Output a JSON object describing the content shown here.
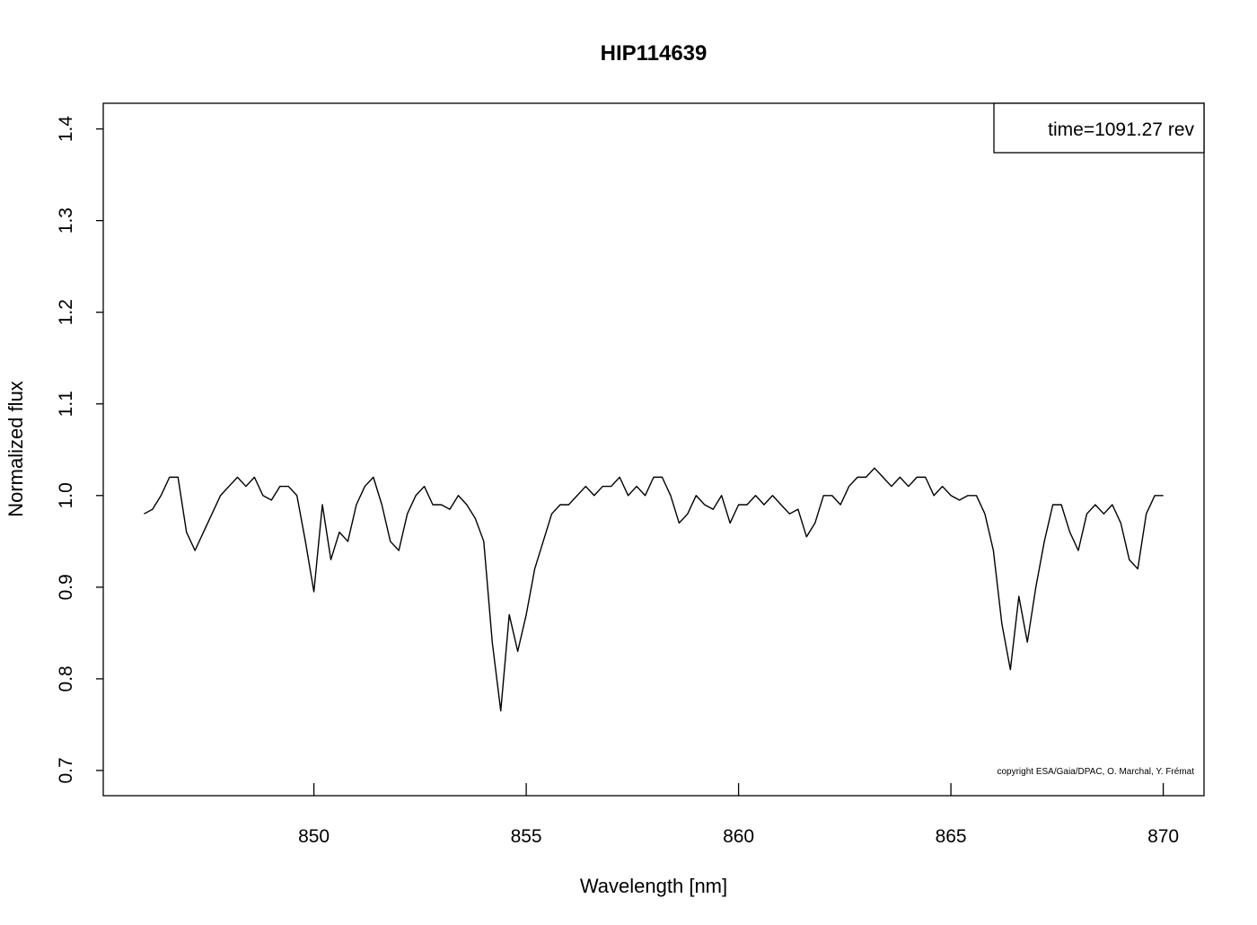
{
  "chart_data": {
    "type": "line",
    "title": "HIP114639",
    "x_label": "Wavelength [nm]",
    "y_label": "Normalized flux",
    "annotations": [
      "time=1091.27 rev",
      "copyright ESA/Gaia/DPAC, O. Marchal, Y. Frémat"
    ],
    "color": "#000000",
    "x": [
      846,
      846.2,
      846.4,
      846.6,
      846.8,
      847,
      847.2,
      847.4,
      847.6,
      847.8,
      848,
      848.2,
      848.4,
      848.6,
      848.8,
      849,
      849.2,
      849.4,
      849.6,
      849.8,
      850,
      850.2,
      850.4,
      850.6,
      850.8,
      851,
      851.2,
      851.4,
      851.6,
      851.8,
      852,
      852.2,
      852.4,
      852.6,
      852.8,
      853,
      853.2,
      853.4,
      853.6,
      853.8,
      854,
      854.2,
      854.4,
      854.6,
      854.8,
      855,
      855.2,
      855.4,
      855.6,
      855.8,
      856,
      856.2,
      856.4,
      856.6,
      856.8,
      857,
      857.2,
      857.4,
      857.6,
      857.8,
      858,
      858.2,
      858.4,
      858.6,
      858.8,
      859,
      859.2,
      859.4,
      859.6,
      859.8,
      860,
      860.2,
      860.4,
      860.6,
      860.8,
      861,
      861.2,
      861.4,
      861.6,
      861.8,
      862,
      862.2,
      862.4,
      862.6,
      862.8,
      863,
      863.2,
      863.4,
      863.6,
      863.8,
      864,
      864.2,
      864.4,
      864.6,
      864.8,
      865,
      865.2,
      865.4,
      865.6,
      865.8,
      866,
      866.2,
      866.4,
      866.6,
      866.8,
      867,
      867.2,
      867.4,
      867.6,
      867.8,
      868,
      868.2,
      868.4,
      868.6,
      868.8,
      869,
      869.2,
      869.4,
      869.6,
      869.8,
      870
    ],
    "values": [
      0.98,
      0.985,
      1.0,
      1.02,
      1.02,
      0.96,
      0.94,
      0.96,
      0.98,
      1.0,
      1.01,
      1.02,
      1.01,
      1.02,
      1.0,
      0.995,
      1.01,
      1.01,
      1.0,
      0.95,
      0.895,
      0.99,
      0.93,
      0.96,
      0.95,
      0.99,
      1.01,
      1.02,
      0.99,
      0.95,
      0.94,
      0.98,
      1.0,
      1.01,
      0.99,
      0.99,
      0.985,
      1.0,
      0.99,
      0.975,
      0.95,
      0.84,
      0.765,
      0.87,
      0.83,
      0.87,
      0.92,
      0.95,
      0.98,
      0.99,
      0.99,
      1.0,
      1.01,
      1.0,
      1.01,
      1.01,
      1.02,
      1.0,
      1.01,
      1.0,
      1.02,
      1.02,
      1.0,
      0.97,
      0.98,
      1.0,
      0.99,
      0.985,
      1.0,
      0.97,
      0.99,
      0.99,
      1.0,
      0.99,
      1.0,
      0.99,
      0.98,
      0.985,
      0.955,
      0.97,
      1.0,
      1.0,
      0.99,
      1.01,
      1.02,
      1.02,
      1.03,
      1.02,
      1.01,
      1.02,
      1.01,
      1.02,
      1.02,
      1.0,
      1.01,
      1.0,
      0.995,
      1.0,
      1.0,
      0.98,
      0.94,
      0.86,
      0.81,
      0.89,
      0.84,
      0.9,
      0.95,
      0.99,
      0.99,
      0.96,
      0.94,
      0.98,
      0.99,
      0.98,
      0.99,
      0.97,
      0.93,
      0.92,
      0.98,
      1.0,
      1.0
    ],
    "xlim": [
      845.04,
      870.96
    ],
    "ylim": [
      0.6725,
      1.428
    ],
    "xticks": [
      850,
      855,
      860,
      865,
      870
    ],
    "yticks": [
      0.7,
      0.8,
      0.9,
      {
        "value": 1,
        "label": "1.0"
      },
      1.1,
      1.2,
      1.3,
      1.4
    ]
  }
}
